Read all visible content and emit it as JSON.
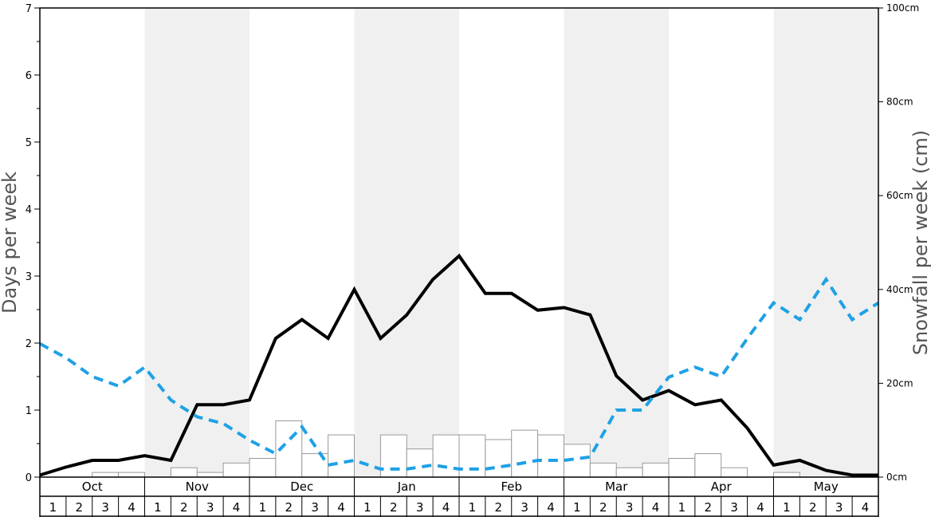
{
  "chart_data": {
    "type": "bar+line",
    "ylabel_left": "Days per week",
    "ylabel_right": "Snowfall per week (cm)",
    "ylim_left": [
      0,
      7
    ],
    "ylim_right": [
      0,
      100
    ],
    "left_ticks": [
      "0",
      "1",
      "2",
      "3",
      "4",
      "5",
      "6",
      "7"
    ],
    "right_ticks": [
      "0cm",
      "20cm",
      "40cm",
      "60cm",
      "80cm",
      "100cm"
    ],
    "months": [
      "Oct",
      "Nov",
      "Dec",
      "Jan",
      "Feb",
      "Mar",
      "Apr",
      "May"
    ],
    "week_labels": [
      "1",
      "2",
      "3",
      "4"
    ],
    "series": [
      {
        "kind": "bar",
        "axis": "right",
        "color": "#999999",
        "values": [
          0,
          0,
          1,
          1,
          0,
          2,
          1,
          3,
          4,
          12,
          5,
          9,
          0,
          9,
          6,
          9,
          9,
          8,
          10,
          9,
          7,
          3,
          2,
          3,
          4,
          5,
          2,
          0,
          1,
          0,
          0,
          0
        ]
      },
      {
        "kind": "line",
        "style": "solid",
        "axis": "left",
        "color": "#000000",
        "values": [
          0.03,
          0.15,
          0.25,
          0.25,
          0.32,
          0.25,
          1.08,
          1.08,
          1.15,
          2.07,
          2.35,
          2.07,
          2.8,
          2.07,
          2.42,
          2.95,
          3.3,
          2.74,
          2.74,
          2.49,
          2.53,
          2.42,
          1.51,
          1.15,
          1.29,
          1.08,
          1.15,
          0.73,
          0.18,
          0.25,
          0.1,
          0.03,
          0.03
        ]
      },
      {
        "kind": "line",
        "style": "dashed",
        "axis": "left",
        "color": "#1ea1e6",
        "values": [
          1.99,
          1.78,
          1.5,
          1.36,
          1.64,
          1.15,
          0.9,
          0.8,
          0.55,
          0.35,
          0.75,
          0.18,
          0.25,
          0.12,
          0.12,
          0.18,
          0.12,
          0.12,
          0.18,
          0.25,
          0.25,
          0.3,
          1.0,
          1.0,
          1.49,
          1.64,
          1.5,
          2.07,
          2.6,
          2.35,
          2.95,
          2.35,
          2.6
        ]
      }
    ]
  }
}
